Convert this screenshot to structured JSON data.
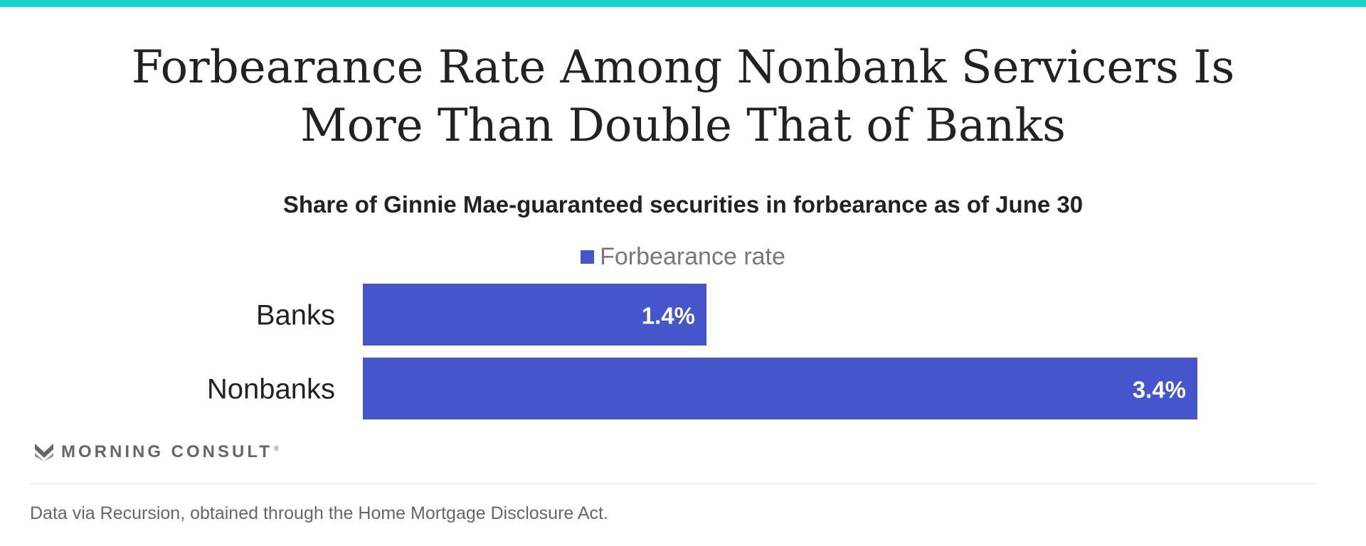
{
  "header": {
    "title_line1": "Forbearance Rate Among Nonbank Servicers Is",
    "title_line2": "More Than Double That of Banks",
    "subtitle": "Share of Ginnie Mae-guaranteed securities in forbearance as of June 30"
  },
  "colors": {
    "accent_bar": "#14d4c8",
    "series": "#4556cc"
  },
  "chart_data": {
    "type": "bar",
    "orientation": "horizontal",
    "title": "Forbearance Rate Among Nonbank Servicers Is More Than Double That of Banks",
    "subtitle": "Share of Ginnie Mae-guaranteed securities in forbearance as of June 30",
    "categories": [
      "Banks",
      "Nonbanks"
    ],
    "series": [
      {
        "name": "Forbearance rate",
        "values": [
          1.4,
          3.4
        ],
        "labels": [
          "1.4%",
          "3.4%"
        ],
        "color": "#4556cc"
      }
    ],
    "xlim": [
      0,
      3.4
    ],
    "grid": false,
    "legend": "top-center"
  },
  "brand": {
    "name": "MORNING CONSULT",
    "mark": "®",
    "icon": "morning-consult-logo-icon"
  },
  "footer": {
    "source": "Data via Recursion, obtained through the Home Mortgage Disclosure Act."
  }
}
